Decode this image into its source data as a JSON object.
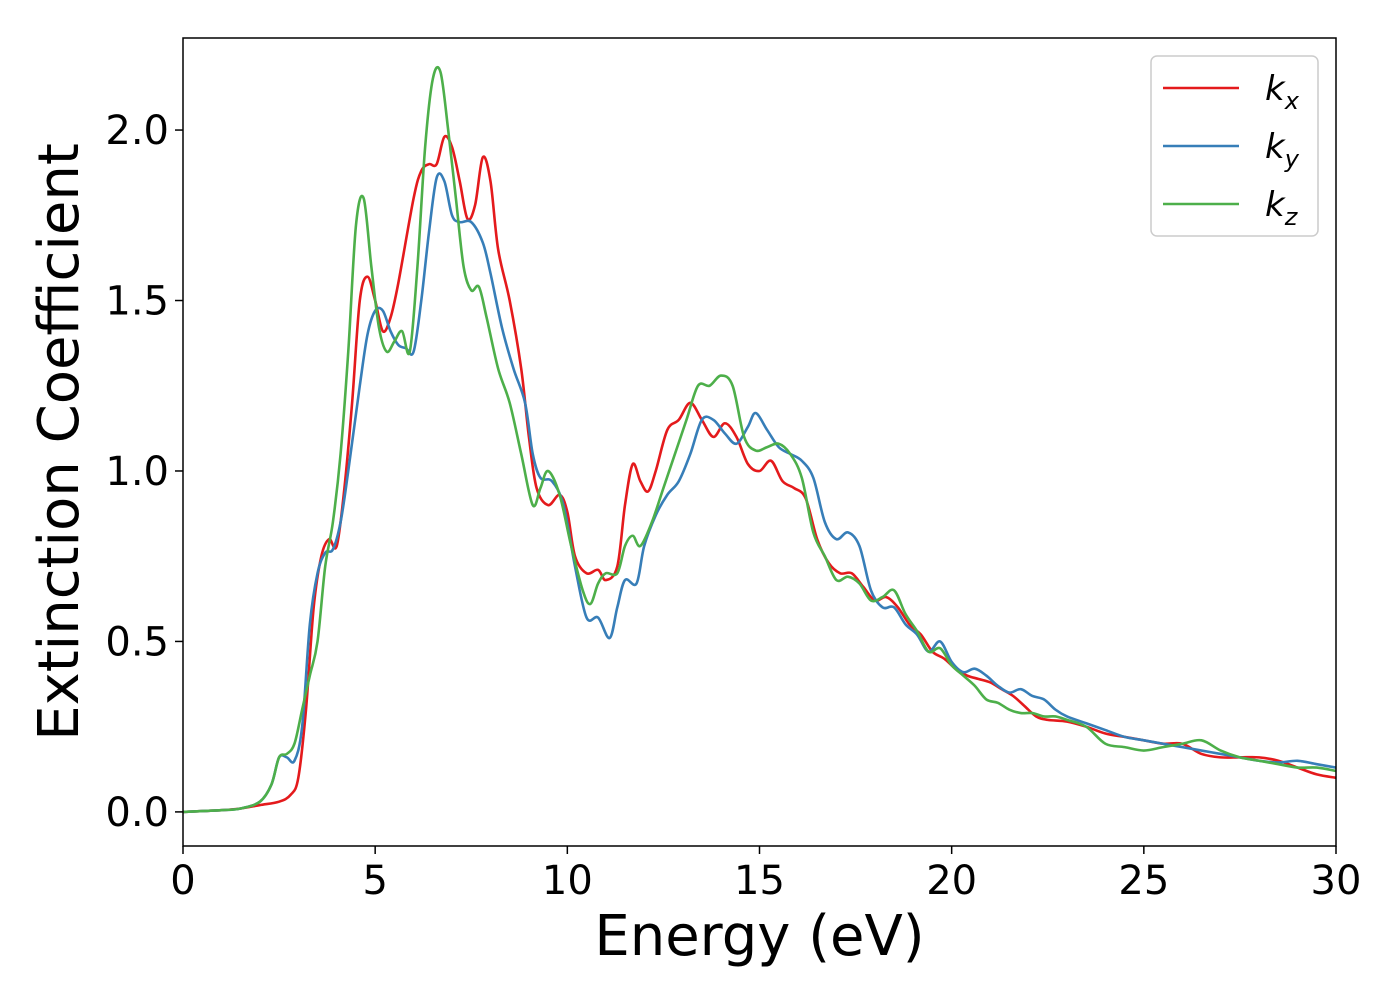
{
  "chart_data": {
    "type": "line",
    "xlabel": "Energy (eV)",
    "ylabel": "Extinction Coefficient",
    "xlim": [
      0,
      30
    ],
    "ylim": [
      -0.1,
      2.27
    ],
    "xticks": [
      0,
      5,
      10,
      15,
      20,
      25,
      30
    ],
    "yticks": [
      0.0,
      0.5,
      1.0,
      1.5,
      2.0
    ],
    "grid": false,
    "legend_position": "top-right",
    "series": [
      {
        "name": "k_x",
        "label_main": "k",
        "label_sub": "x",
        "color": "#e41a1c",
        "points": [
          [
            0,
            0
          ],
          [
            1,
            0.005
          ],
          [
            1.5,
            0.01
          ],
          [
            2,
            0.02
          ],
          [
            2.5,
            0.03
          ],
          [
            2.8,
            0.05
          ],
          [
            3.0,
            0.1
          ],
          [
            3.2,
            0.3
          ],
          [
            3.4,
            0.6
          ],
          [
            3.6,
            0.75
          ],
          [
            3.8,
            0.8
          ],
          [
            4.0,
            0.78
          ],
          [
            4.2,
            0.95
          ],
          [
            4.4,
            1.2
          ],
          [
            4.6,
            1.5
          ],
          [
            4.8,
            1.57
          ],
          [
            5.0,
            1.5
          ],
          [
            5.2,
            1.41
          ],
          [
            5.4,
            1.45
          ],
          [
            5.6,
            1.55
          ],
          [
            6.0,
            1.8
          ],
          [
            6.2,
            1.88
          ],
          [
            6.4,
            1.9
          ],
          [
            6.6,
            1.9
          ],
          [
            6.8,
            1.98
          ],
          [
            7.0,
            1.95
          ],
          [
            7.2,
            1.85
          ],
          [
            7.4,
            1.74
          ],
          [
            7.6,
            1.78
          ],
          [
            7.8,
            1.92
          ],
          [
            8.0,
            1.85
          ],
          [
            8.2,
            1.65
          ],
          [
            8.5,
            1.5
          ],
          [
            8.8,
            1.3
          ],
          [
            9.0,
            1.1
          ],
          [
            9.2,
            0.95
          ],
          [
            9.5,
            0.9
          ],
          [
            9.8,
            0.93
          ],
          [
            10.0,
            0.88
          ],
          [
            10.2,
            0.75
          ],
          [
            10.5,
            0.7
          ],
          [
            10.8,
            0.71
          ],
          [
            11.0,
            0.68
          ],
          [
            11.3,
            0.72
          ],
          [
            11.5,
            0.9
          ],
          [
            11.7,
            1.02
          ],
          [
            11.9,
            0.97
          ],
          [
            12.1,
            0.94
          ],
          [
            12.3,
            1.0
          ],
          [
            12.6,
            1.12
          ],
          [
            12.9,
            1.15
          ],
          [
            13.2,
            1.2
          ],
          [
            13.5,
            1.15
          ],
          [
            13.8,
            1.1
          ],
          [
            14.1,
            1.14
          ],
          [
            14.4,
            1.1
          ],
          [
            14.7,
            1.02
          ],
          [
            15.0,
            1.0
          ],
          [
            15.3,
            1.03
          ],
          [
            15.6,
            0.97
          ],
          [
            15.9,
            0.95
          ],
          [
            16.2,
            0.92
          ],
          [
            16.5,
            0.8
          ],
          [
            16.8,
            0.73
          ],
          [
            17.1,
            0.7
          ],
          [
            17.4,
            0.7
          ],
          [
            17.7,
            0.66
          ],
          [
            18.0,
            0.62
          ],
          [
            18.3,
            0.63
          ],
          [
            18.6,
            0.6
          ],
          [
            18.9,
            0.55
          ],
          [
            19.2,
            0.52
          ],
          [
            19.5,
            0.47
          ],
          [
            19.8,
            0.45
          ],
          [
            20.1,
            0.42
          ],
          [
            20.4,
            0.4
          ],
          [
            20.7,
            0.39
          ],
          [
            21.0,
            0.38
          ],
          [
            21.3,
            0.36
          ],
          [
            21.6,
            0.34
          ],
          [
            21.9,
            0.31
          ],
          [
            22.2,
            0.28
          ],
          [
            22.5,
            0.27
          ],
          [
            23.0,
            0.265
          ],
          [
            23.5,
            0.25
          ],
          [
            24.0,
            0.23
          ],
          [
            24.5,
            0.22
          ],
          [
            25.0,
            0.21
          ],
          [
            25.5,
            0.2
          ],
          [
            26.0,
            0.2
          ],
          [
            26.5,
            0.17
          ],
          [
            27.0,
            0.16
          ],
          [
            27.5,
            0.16
          ],
          [
            28.0,
            0.16
          ],
          [
            28.5,
            0.15
          ],
          [
            29.0,
            0.13
          ],
          [
            29.5,
            0.11
          ],
          [
            30.0,
            0.1
          ]
        ]
      },
      {
        "name": "k_y",
        "label_main": "k",
        "label_sub": "y",
        "color": "#377eb8",
        "points": [
          [
            0,
            0
          ],
          [
            1,
            0.005
          ],
          [
            1.5,
            0.01
          ],
          [
            2,
            0.03
          ],
          [
            2.3,
            0.08
          ],
          [
            2.5,
            0.16
          ],
          [
            2.7,
            0.16
          ],
          [
            2.9,
            0.15
          ],
          [
            3.1,
            0.25
          ],
          [
            3.3,
            0.55
          ],
          [
            3.5,
            0.7
          ],
          [
            3.7,
            0.76
          ],
          [
            3.9,
            0.77
          ],
          [
            4.1,
            0.85
          ],
          [
            4.3,
            1.0
          ],
          [
            4.6,
            1.25
          ],
          [
            4.8,
            1.4
          ],
          [
            5.0,
            1.47
          ],
          [
            5.2,
            1.47
          ],
          [
            5.4,
            1.41
          ],
          [
            5.6,
            1.37
          ],
          [
            5.8,
            1.36
          ],
          [
            6.0,
            1.35
          ],
          [
            6.2,
            1.5
          ],
          [
            6.4,
            1.7
          ],
          [
            6.6,
            1.86
          ],
          [
            6.8,
            1.85
          ],
          [
            7.0,
            1.75
          ],
          [
            7.2,
            1.73
          ],
          [
            7.5,
            1.73
          ],
          [
            7.8,
            1.67
          ],
          [
            8.0,
            1.58
          ],
          [
            8.3,
            1.42
          ],
          [
            8.6,
            1.3
          ],
          [
            8.9,
            1.2
          ],
          [
            9.1,
            1.05
          ],
          [
            9.3,
            0.98
          ],
          [
            9.6,
            0.97
          ],
          [
            9.9,
            0.9
          ],
          [
            10.2,
            0.72
          ],
          [
            10.5,
            0.57
          ],
          [
            10.8,
            0.57
          ],
          [
            11.1,
            0.51
          ],
          [
            11.3,
            0.6
          ],
          [
            11.5,
            0.68
          ],
          [
            11.8,
            0.67
          ],
          [
            12.0,
            0.78
          ],
          [
            12.3,
            0.87
          ],
          [
            12.6,
            0.93
          ],
          [
            12.9,
            0.97
          ],
          [
            13.2,
            1.05
          ],
          [
            13.5,
            1.15
          ],
          [
            13.8,
            1.15
          ],
          [
            14.1,
            1.11
          ],
          [
            14.4,
            1.08
          ],
          [
            14.7,
            1.13
          ],
          [
            14.9,
            1.17
          ],
          [
            15.2,
            1.12
          ],
          [
            15.5,
            1.07
          ],
          [
            15.8,
            1.05
          ],
          [
            16.1,
            1.03
          ],
          [
            16.4,
            0.98
          ],
          [
            16.7,
            0.85
          ],
          [
            17.0,
            0.8
          ],
          [
            17.3,
            0.82
          ],
          [
            17.6,
            0.78
          ],
          [
            17.9,
            0.65
          ],
          [
            18.2,
            0.6
          ],
          [
            18.5,
            0.6
          ],
          [
            18.8,
            0.55
          ],
          [
            19.1,
            0.52
          ],
          [
            19.4,
            0.47
          ],
          [
            19.7,
            0.5
          ],
          [
            20.0,
            0.44
          ],
          [
            20.3,
            0.41
          ],
          [
            20.6,
            0.42
          ],
          [
            20.9,
            0.4
          ],
          [
            21.2,
            0.37
          ],
          [
            21.5,
            0.35
          ],
          [
            21.8,
            0.36
          ],
          [
            22.1,
            0.34
          ],
          [
            22.4,
            0.33
          ],
          [
            22.7,
            0.3
          ],
          [
            23.0,
            0.28
          ],
          [
            23.5,
            0.26
          ],
          [
            24.0,
            0.24
          ],
          [
            24.5,
            0.22
          ],
          [
            25.0,
            0.21
          ],
          [
            25.5,
            0.2
          ],
          [
            26.0,
            0.19
          ],
          [
            26.5,
            0.18
          ],
          [
            27.0,
            0.17
          ],
          [
            27.5,
            0.16
          ],
          [
            28.0,
            0.15
          ],
          [
            28.5,
            0.145
          ],
          [
            29.0,
            0.15
          ],
          [
            29.5,
            0.14
          ],
          [
            30.0,
            0.13
          ]
        ]
      },
      {
        "name": "k_z",
        "label_main": "k",
        "label_sub": "z",
        "color": "#4daf4a",
        "points": [
          [
            0,
            0
          ],
          [
            1,
            0.005
          ],
          [
            1.5,
            0.01
          ],
          [
            2,
            0.03
          ],
          [
            2.3,
            0.08
          ],
          [
            2.5,
            0.16
          ],
          [
            2.7,
            0.17
          ],
          [
            2.9,
            0.2
          ],
          [
            3.1,
            0.3
          ],
          [
            3.3,
            0.4
          ],
          [
            3.5,
            0.5
          ],
          [
            3.7,
            0.72
          ],
          [
            3.9,
            0.85
          ],
          [
            4.1,
            1.05
          ],
          [
            4.3,
            1.35
          ],
          [
            4.5,
            1.72
          ],
          [
            4.7,
            1.8
          ],
          [
            4.9,
            1.6
          ],
          [
            5.1,
            1.42
          ],
          [
            5.3,
            1.35
          ],
          [
            5.5,
            1.38
          ],
          [
            5.7,
            1.41
          ],
          [
            5.9,
            1.35
          ],
          [
            6.1,
            1.6
          ],
          [
            6.3,
            1.95
          ],
          [
            6.5,
            2.15
          ],
          [
            6.7,
            2.17
          ],
          [
            6.9,
            2.0
          ],
          [
            7.1,
            1.8
          ],
          [
            7.3,
            1.6
          ],
          [
            7.5,
            1.53
          ],
          [
            7.7,
            1.54
          ],
          [
            7.9,
            1.45
          ],
          [
            8.2,
            1.3
          ],
          [
            8.5,
            1.2
          ],
          [
            8.8,
            1.05
          ],
          [
            9.1,
            0.9
          ],
          [
            9.3,
            0.95
          ],
          [
            9.5,
            1.0
          ],
          [
            9.8,
            0.93
          ],
          [
            10.1,
            0.78
          ],
          [
            10.4,
            0.65
          ],
          [
            10.6,
            0.61
          ],
          [
            10.8,
            0.67
          ],
          [
            11.0,
            0.7
          ],
          [
            11.3,
            0.7
          ],
          [
            11.5,
            0.78
          ],
          [
            11.7,
            0.81
          ],
          [
            11.9,
            0.78
          ],
          [
            12.2,
            0.85
          ],
          [
            12.5,
            0.95
          ],
          [
            12.8,
            1.05
          ],
          [
            13.1,
            1.15
          ],
          [
            13.4,
            1.25
          ],
          [
            13.7,
            1.25
          ],
          [
            14.0,
            1.28
          ],
          [
            14.3,
            1.25
          ],
          [
            14.6,
            1.1
          ],
          [
            14.9,
            1.06
          ],
          [
            15.2,
            1.07
          ],
          [
            15.5,
            1.08
          ],
          [
            15.8,
            1.05
          ],
          [
            16.1,
            0.98
          ],
          [
            16.4,
            0.82
          ],
          [
            16.7,
            0.75
          ],
          [
            17.0,
            0.68
          ],
          [
            17.3,
            0.69
          ],
          [
            17.6,
            0.67
          ],
          [
            17.9,
            0.62
          ],
          [
            18.2,
            0.63
          ],
          [
            18.5,
            0.65
          ],
          [
            18.8,
            0.58
          ],
          [
            19.1,
            0.53
          ],
          [
            19.4,
            0.47
          ],
          [
            19.7,
            0.48
          ],
          [
            20.0,
            0.43
          ],
          [
            20.3,
            0.4
          ],
          [
            20.6,
            0.37
          ],
          [
            20.9,
            0.33
          ],
          [
            21.2,
            0.32
          ],
          [
            21.5,
            0.3
          ],
          [
            21.8,
            0.29
          ],
          [
            22.1,
            0.29
          ],
          [
            22.4,
            0.28
          ],
          [
            22.7,
            0.28
          ],
          [
            23.0,
            0.27
          ],
          [
            23.5,
            0.25
          ],
          [
            24.0,
            0.2
          ],
          [
            24.5,
            0.19
          ],
          [
            25.0,
            0.18
          ],
          [
            25.5,
            0.19
          ],
          [
            26.0,
            0.2
          ],
          [
            26.5,
            0.21
          ],
          [
            27.0,
            0.18
          ],
          [
            27.5,
            0.16
          ],
          [
            28.0,
            0.15
          ],
          [
            28.5,
            0.14
          ],
          [
            29.0,
            0.13
          ],
          [
            29.5,
            0.13
          ],
          [
            30.0,
            0.12
          ]
        ]
      }
    ]
  }
}
